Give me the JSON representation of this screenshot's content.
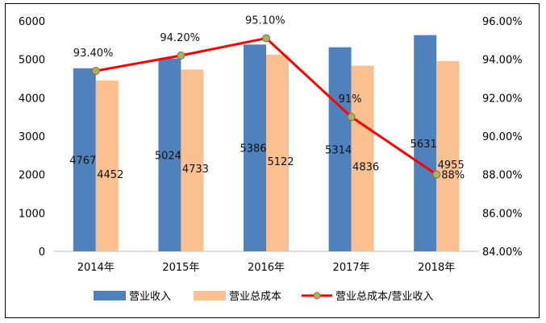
{
  "chart_data": {
    "type": "bar+line",
    "categories": [
      "2014年",
      "2015年",
      "2016年",
      "2017年",
      "2018年"
    ],
    "series": [
      {
        "name": "营业收入",
        "type": "bar",
        "axis": "left",
        "color": "#4f81bd",
        "values": [
          4767,
          5024,
          5386,
          5314,
          5631
        ],
        "labels": [
          "4767",
          "5024",
          "5386",
          "5314",
          "5631"
        ]
      },
      {
        "name": "营业总成本",
        "type": "bar",
        "axis": "left",
        "color": "#fac090",
        "values": [
          4452,
          4733,
          5122,
          4836,
          4955
        ],
        "labels": [
          "4452",
          "4733",
          "5122",
          "4836",
          "4955"
        ]
      },
      {
        "name": "营业总成本/营业收入",
        "type": "line",
        "axis": "right",
        "color": "#ff0000",
        "marker_color": "#9bbb59",
        "values": [
          93.4,
          94.2,
          95.1,
          91.0,
          88.0
        ],
        "labels": [
          "93.40%",
          "94.20%",
          "95.10%",
          "91%",
          "88%"
        ]
      }
    ],
    "y_left": {
      "min": 0,
      "max": 6000,
      "ticks": [
        "0",
        "1000",
        "2000",
        "3000",
        "4000",
        "5000",
        "6000"
      ]
    },
    "y_right": {
      "min": 84,
      "max": 96,
      "ticks": [
        "84.00%",
        "86.00%",
        "88.00%",
        "90.00%",
        "92.00%",
        "94.00%",
        "96.00%"
      ]
    },
    "grid": false,
    "legend_position": "bottom"
  }
}
